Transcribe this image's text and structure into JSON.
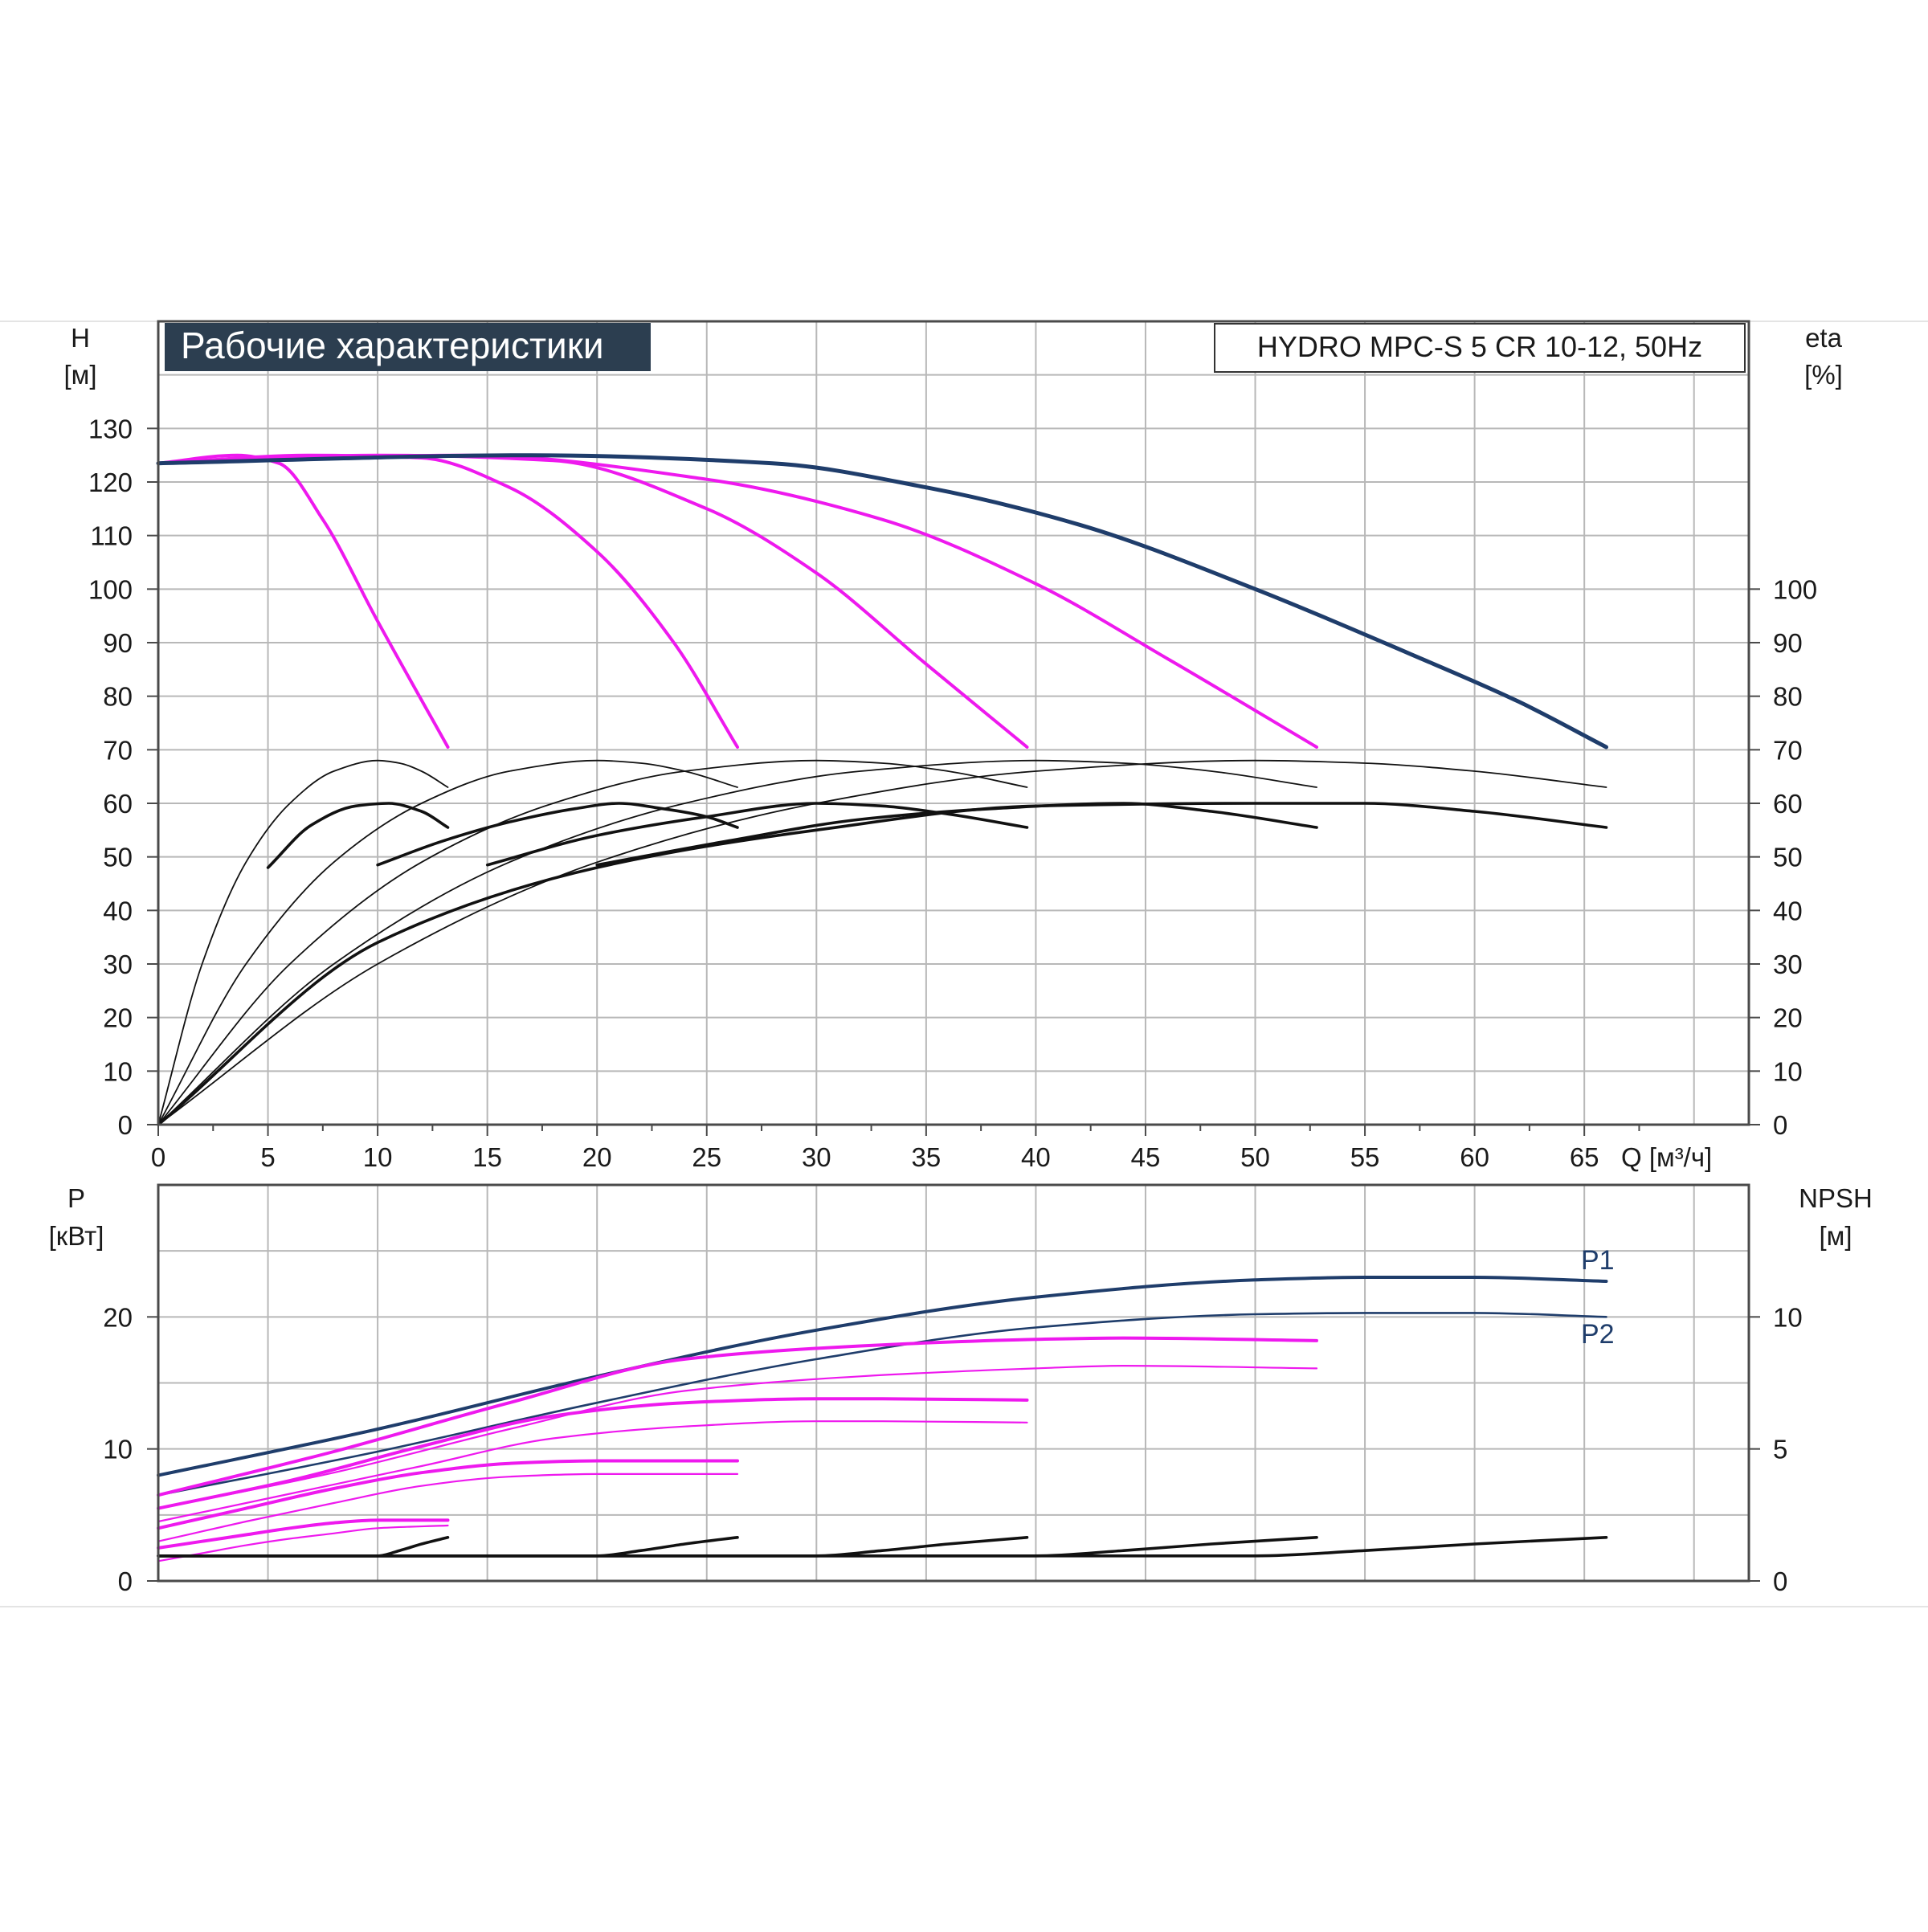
{
  "colors": {
    "grid": "#b8b8b8",
    "frame": "#4a4a4a",
    "title_box": "#2c3e50",
    "title_text": "#ffffff",
    "navy": "#1f3d6b",
    "magenta": "#ee19ee",
    "black": "#111111"
  },
  "chart_data": [
    {
      "type": "line",
      "title": "Рабочие характеристики",
      "model_label": "HYDRO MPC-S 5 CR 10-12, 50Hz",
      "ylabel": "H",
      "ylabel_unit": "[м]",
      "y2label": "eta",
      "y2label_unit": "[%]",
      "xlabel": "Q [м³/ч]",
      "xlim": [
        0,
        72.5
      ],
      "ylim": [
        0,
        150
      ],
      "x_ticks": [
        0,
        5,
        10,
        15,
        20,
        25,
        30,
        35,
        40,
        45,
        50,
        55,
        60,
        65
      ],
      "y_ticks": [
        0,
        10,
        20,
        30,
        40,
        50,
        60,
        70,
        80,
        90,
        100,
        110,
        120,
        130
      ],
      "y2_ticks": [
        0,
        10,
        20,
        30,
        40,
        50,
        60,
        70,
        80,
        90,
        100
      ],
      "grid": true,
      "series": [
        {
          "role": "head",
          "pumps": 1,
          "color": "magenta",
          "width": 4,
          "x": [
            0,
            3.6,
            5.5,
            7.5,
            10,
            13.2
          ],
          "y": [
            123.5,
            125,
            123.5,
            113,
            94,
            70.5
          ]
        },
        {
          "role": "head",
          "pumps": 2,
          "color": "magenta",
          "width": 4,
          "x": [
            0,
            7,
            12,
            16,
            20,
            23.5,
            26.4
          ],
          "y": [
            123.5,
            125,
            124.5,
            119,
            107,
            90,
            70.5
          ]
        },
        {
          "role": "head",
          "pumps": 3,
          "color": "magenta",
          "width": 4,
          "x": [
            0,
            10,
            18,
            25,
            30,
            35,
            39.6
          ],
          "y": [
            123.5,
            125,
            124,
            115,
            103,
            86,
            70.5
          ]
        },
        {
          "role": "head",
          "pumps": 4,
          "color": "magenta",
          "width": 4,
          "x": [
            0,
            14,
            25,
            33,
            40,
            46,
            52.8
          ],
          "y": [
            123.5,
            125,
            120.5,
            113,
            101,
            87,
            70.5
          ]
        },
        {
          "role": "head",
          "pumps": 5,
          "color": "navy",
          "width": 5,
          "x": [
            0,
            17,
            28,
            35,
            42,
            50,
            57,
            62,
            66
          ],
          "y": [
            123.5,
            125,
            123.5,
            119,
            112,
            100,
            88,
            79,
            70.5
          ]
        },
        {
          "role": "efficiency",
          "pumps": 1,
          "color": "black",
          "width": 1.8,
          "x": [
            0,
            2,
            4,
            6,
            8,
            10,
            11,
            12,
            13.2
          ],
          "y": [
            0,
            30,
            49,
            60,
            66,
            68,
            67.5,
            66,
            63
          ]
        },
        {
          "role": "efficiency",
          "pumps": 2,
          "color": "black",
          "width": 1.8,
          "x": [
            0,
            4,
            8,
            12,
            16,
            20,
            22,
            24,
            26.4
          ],
          "y": [
            0,
            30,
            49,
            60,
            66,
            68,
            67.5,
            66,
            63
          ]
        },
        {
          "role": "efficiency",
          "pumps": 3,
          "color": "black",
          "width": 1.8,
          "x": [
            0,
            6,
            12,
            18,
            24,
            30,
            33,
            36,
            39.6
          ],
          "y": [
            0,
            30,
            49,
            60,
            66,
            68,
            67.5,
            66,
            63
          ]
        },
        {
          "role": "efficiency",
          "pumps": 4,
          "color": "black",
          "width": 1.8,
          "x": [
            0,
            8,
            16,
            24,
            32,
            40,
            44,
            48,
            52.8
          ],
          "y": [
            0,
            30,
            49,
            60,
            66,
            68,
            67.5,
            66,
            63
          ]
        },
        {
          "role": "efficiency",
          "pumps": 5,
          "color": "black",
          "width": 1.8,
          "x": [
            0,
            10,
            20,
            30,
            40,
            50,
            55,
            60,
            66
          ],
          "y": [
            0,
            30,
            49,
            60,
            66,
            68,
            67.5,
            66,
            63
          ]
        },
        {
          "role": "efficiency-total",
          "pumps": 1,
          "color": "black",
          "width": 3.6,
          "x": [
            5,
            7,
            9,
            10.5,
            12,
            13.2
          ],
          "y": [
            48,
            56,
            59.5,
            60,
            58.5,
            55.5
          ]
        },
        {
          "role": "efficiency-total",
          "pumps": 2,
          "color": "black",
          "width": 3.6,
          "x": [
            10,
            13,
            16,
            19,
            21,
            23,
            25,
            26.4
          ],
          "y": [
            48.5,
            53,
            56.5,
            59,
            60,
            59,
            57.5,
            55.5
          ]
        },
        {
          "role": "efficiency-total",
          "pumps": 3,
          "color": "black",
          "width": 3.6,
          "x": [
            15,
            20,
            25,
            30,
            33,
            36,
            39.6
          ],
          "y": [
            48.5,
            54,
            57.5,
            60,
            59.5,
            58,
            55.5
          ]
        },
        {
          "role": "efficiency-total",
          "pumps": 4,
          "color": "black",
          "width": 3.6,
          "x": [
            20,
            26,
            32,
            38,
            44,
            48,
            52.8
          ],
          "y": [
            48.5,
            53,
            57,
            59,
            60,
            58.5,
            55.5
          ]
        },
        {
          "role": "efficiency-total",
          "pumps": 5,
          "color": "black",
          "width": 3.6,
          "x": [
            0,
            10,
            20,
            30,
            40,
            50,
            55,
            60,
            66
          ],
          "y": [
            0,
            34,
            48,
            55,
            59.5,
            60,
            60,
            58.5,
            55.5
          ]
        }
      ]
    },
    {
      "type": "line",
      "ylabel": "P",
      "ylabel_unit": "[кВт]",
      "y2label": "NPSH",
      "y2label_unit": "[м]",
      "xlim": [
        0,
        72.5
      ],
      "ylim": [
        0,
        30
      ],
      "y_ticks": [
        0,
        10,
        20
      ],
      "y2_ticks": [
        0,
        5,
        10
      ],
      "y2_scale": 2,
      "grid": true,
      "curve_labels": [
        "P1",
        "P2"
      ],
      "series": [
        {
          "role": "P1",
          "pumps": 5,
          "color": "navy",
          "width": 4,
          "x": [
            0,
            10,
            20,
            30,
            40,
            50,
            55,
            60,
            66
          ],
          "y": [
            8,
            11.5,
            15.5,
            19,
            21.5,
            22.8,
            23,
            23,
            22.7
          ]
        },
        {
          "role": "P2",
          "pumps": 5,
          "color": "navy",
          "width": 2.6,
          "x": [
            0,
            10,
            20,
            30,
            40,
            50,
            55,
            60,
            66
          ],
          "y": [
            6.5,
            9.8,
            13.5,
            16.8,
            19.2,
            20.2,
            20.3,
            20.3,
            20
          ]
        },
        {
          "role": "P1",
          "pumps": 4,
          "color": "magenta",
          "width": 4,
          "x": [
            0,
            8,
            16,
            24,
            32,
            40,
            44,
            52.8
          ],
          "y": [
            6.5,
            9.8,
            13.5,
            16.8,
            17.8,
            18.3,
            18.4,
            18.2
          ]
        },
        {
          "role": "P2",
          "pumps": 4,
          "color": "magenta",
          "width": 2.2,
          "x": [
            0,
            8,
            16,
            24,
            32,
            40,
            44,
            52.8
          ],
          "y": [
            5.5,
            8.2,
            11.5,
            14.4,
            15.5,
            16.1,
            16.3,
            16.1
          ]
        },
        {
          "role": "P1",
          "pumps": 3,
          "color": "magenta",
          "width": 4,
          "x": [
            0,
            6,
            12,
            18,
            24,
            30,
            33,
            39.6
          ],
          "y": [
            5.5,
            7.6,
            10.2,
            12.5,
            13.5,
            13.8,
            13.8,
            13.7
          ]
        },
        {
          "role": "P2",
          "pumps": 3,
          "color": "magenta",
          "width": 2.2,
          "x": [
            0,
            6,
            12,
            18,
            24,
            30,
            33,
            39.6
          ],
          "y": [
            4.5,
            6.6,
            8.7,
            10.8,
            11.7,
            12.1,
            12.1,
            12
          ]
        },
        {
          "role": "P1",
          "pumps": 2,
          "color": "magenta",
          "width": 4,
          "x": [
            0,
            4,
            8,
            12,
            16,
            20,
            26.4
          ],
          "y": [
            4,
            5.5,
            7,
            8.2,
            8.9,
            9.1,
            9.1
          ]
        },
        {
          "role": "P2",
          "pumps": 2,
          "color": "magenta",
          "width": 2.2,
          "x": [
            0,
            4,
            8,
            12,
            16,
            20,
            26.4
          ],
          "y": [
            3,
            4.5,
            5.9,
            7.2,
            7.9,
            8.1,
            8.1
          ]
        },
        {
          "role": "P1",
          "pumps": 1,
          "color": "magenta",
          "width": 4,
          "x": [
            0,
            2,
            4,
            6,
            8,
            10,
            13.2
          ],
          "y": [
            2.5,
            3,
            3.5,
            4,
            4.4,
            4.6,
            4.6
          ]
        },
        {
          "role": "P2",
          "pumps": 1,
          "color": "magenta",
          "width": 2.2,
          "x": [
            0,
            2,
            4,
            6,
            8,
            10,
            13.2
          ],
          "y": [
            1.5,
            2.1,
            2.7,
            3.2,
            3.6,
            4,
            4.2
          ]
        },
        {
          "role": "NPSH",
          "pumps": 1,
          "color": "black",
          "width": 3.6,
          "x": [
            0,
            5,
            10,
            11,
            12,
            13.2
          ],
          "y": [
            1.9,
            1.9,
            1.9,
            2.3,
            2.8,
            3.3
          ]
        },
        {
          "role": "NPSH",
          "pumps": 2,
          "color": "black",
          "width": 3.6,
          "x": [
            0,
            10,
            20,
            22,
            24,
            26.4
          ],
          "y": [
            1.9,
            1.9,
            1.9,
            2.3,
            2.8,
            3.3
          ]
        },
        {
          "role": "NPSH",
          "pumps": 3,
          "color": "black",
          "width": 3.6,
          "x": [
            0,
            15,
            30,
            33,
            36,
            39.6
          ],
          "y": [
            1.9,
            1.9,
            1.9,
            2.3,
            2.8,
            3.3
          ]
        },
        {
          "role": "NPSH",
          "pumps": 4,
          "color": "black",
          "width": 3.6,
          "x": [
            0,
            20,
            40,
            44,
            48,
            52.8
          ],
          "y": [
            1.9,
            1.9,
            1.9,
            2.3,
            2.8,
            3.3
          ]
        },
        {
          "role": "NPSH",
          "pumps": 5,
          "color": "black",
          "width": 3.6,
          "x": [
            0,
            25,
            50,
            55,
            60,
            66
          ],
          "y": [
            1.9,
            1.9,
            1.9,
            2.3,
            2.8,
            3.3
          ]
        }
      ]
    }
  ]
}
